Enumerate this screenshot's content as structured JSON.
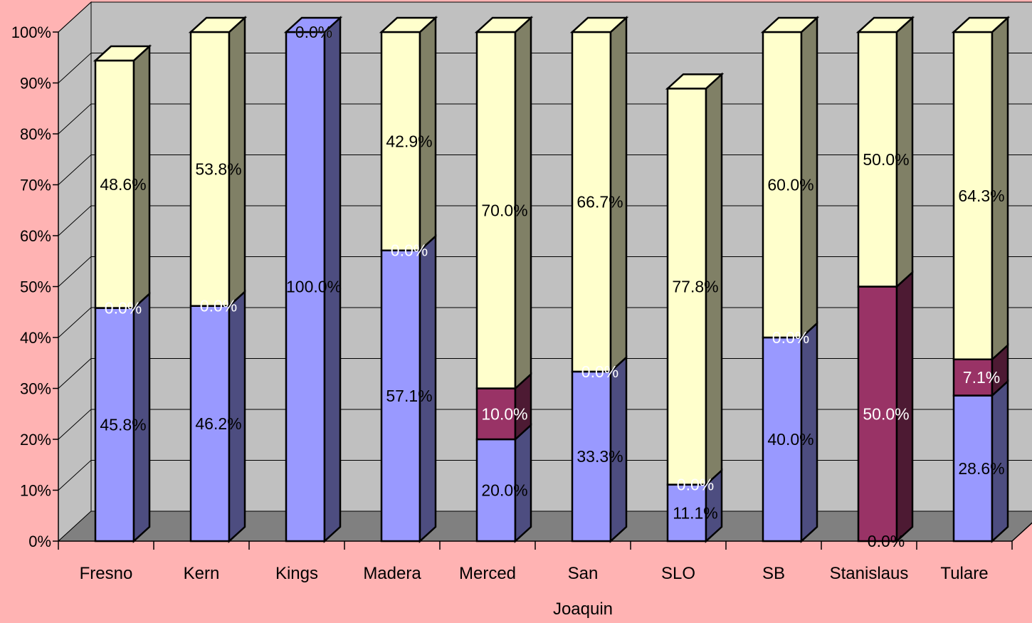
{
  "chart_data": {
    "type": "bar",
    "stacked": "percent",
    "three_d": true,
    "categories": [
      "Fresno",
      "Kern",
      "Kings",
      "Madera",
      "Merced",
      "San Joaquin",
      "SLO",
      "SB",
      "Stanislaus",
      "Tulare"
    ],
    "category_lines": [
      [
        "Fresno"
      ],
      [
        "Kern"
      ],
      [
        "Kings"
      ],
      [
        "Madera"
      ],
      [
        "Merced"
      ],
      [
        "San",
        "Joaquin"
      ],
      [
        "SLO"
      ],
      [
        "SB"
      ],
      [
        "Stanislaus"
      ],
      [
        "Tulare"
      ]
    ],
    "series": [
      {
        "color": "#9999ff",
        "side_color": "#4d4d80",
        "values": [
          45.8,
          46.2,
          100.0,
          57.1,
          20.0,
          33.3,
          11.1,
          40.0,
          0.0,
          28.6
        ],
        "labels": [
          "45.8%",
          "46.2%",
          "100.0%",
          "57.1%",
          "20.0%",
          "33.3%",
          "11.1%",
          "40.0%",
          "0.0%",
          "28.6%"
        ]
      },
      {
        "color": "#993366",
        "side_color": "#4d1a33",
        "values": [
          0.0,
          0.0,
          0.0,
          0.0,
          10.0,
          0.0,
          0.0,
          0.0,
          50.0,
          7.1
        ],
        "labels": [
          "0.0%",
          "0.0%",
          "0.0%",
          "0.0%",
          "10.0%",
          "0.0%",
          "0.0%",
          "0.0%",
          "50.0%",
          "7.1%"
        ]
      },
      {
        "color": "#ffffcc",
        "side_color": "#808066",
        "values": [
          48.6,
          53.8,
          0.0,
          42.9,
          70.0,
          66.7,
          77.8,
          60.0,
          50.0,
          64.3
        ],
        "labels": [
          "48.6%",
          "53.8%",
          "0.0%",
          "42.9%",
          "70.0%",
          "66.7%",
          "77.8%",
          "60.0%",
          "50.0%",
          "64.3%"
        ]
      }
    ],
    "y_ticks": [
      "0%",
      "10%",
      "20%",
      "30%",
      "40%",
      "50%",
      "60%",
      "70%",
      "80%",
      "90%",
      "100%"
    ],
    "ylim": [
      0,
      100
    ],
    "grid": true,
    "legend": "none",
    "colors": {
      "background": "#ffb3b3",
      "wall": "#c0c0c0",
      "floor": "#808080",
      "grid": "#000000"
    }
  }
}
